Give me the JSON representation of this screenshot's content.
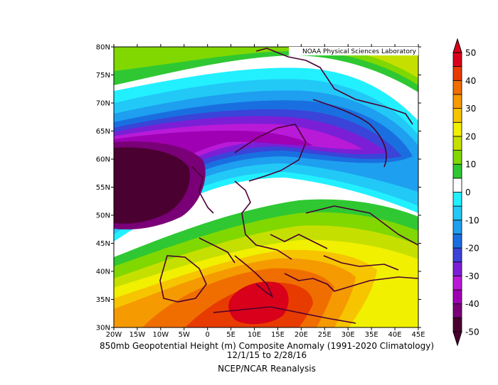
{
  "map": {
    "credit": "NOAA Physical Sciences Laboratory",
    "lat_ticks": [
      "30N",
      "35N",
      "40N",
      "45N",
      "50N",
      "55N",
      "60N",
      "65N",
      "70N",
      "75N",
      "80N"
    ],
    "lon_ticks": [
      "20W",
      "15W",
      "10W",
      "5W",
      "0",
      "5E",
      "10E",
      "15E",
      "20E",
      "25E",
      "30E",
      "35E",
      "40E",
      "45E"
    ]
  },
  "colorbar": {
    "labels": [
      "50",
      "40",
      "30",
      "20",
      "10",
      "0",
      "-10",
      "-20",
      "-30",
      "-40",
      "-50"
    ],
    "colors": [
      "#4a0030",
      "#7a0077",
      "#a000b4",
      "#b81ad8",
      "#7b1fd6",
      "#3a44d8",
      "#1a6fe0",
      "#1e9fef",
      "#22c9f7",
      "#22f0ff",
      "#ffffff",
      "#2fc832",
      "#80d800",
      "#c5e000",
      "#f0f000",
      "#f7c400",
      "#f59a00",
      "#f06e00",
      "#e83b00",
      "#d8001a"
    ]
  },
  "caption": {
    "line1": "850mb Geopotential Height (m) Composite Anomaly (1991-2020 Climatology)",
    "line2": "12/1/15   to 2/28/16",
    "line3": "NCEP/NCAR Reanalysis"
  }
}
